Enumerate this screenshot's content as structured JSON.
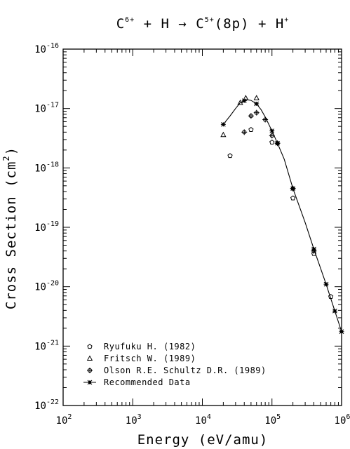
{
  "chart_data": {
    "type": "scatter",
    "title": {
      "parts": [
        {
          "text": "C",
          "sup": "6+"
        },
        {
          "text": " + H → C",
          "sup": "5+"
        },
        {
          "text": "(8p) + H",
          "sup": "+"
        }
      ]
    },
    "xlabel": "Energy (eV/amu)",
    "ylabel": {
      "text": "Cross Section (cm",
      "sup": "2",
      "tail": ")"
    },
    "x_scale": "log",
    "y_scale": "log",
    "xlim": [
      100,
      1000000
    ],
    "ylim": [
      1e-22,
      1e-16
    ],
    "x_ticks": [
      {
        "base": "10",
        "exp": "2",
        "value": 100
      },
      {
        "base": "10",
        "exp": "3",
        "value": 1000
      },
      {
        "base": "10",
        "exp": "4",
        "value": 10000
      },
      {
        "base": "10",
        "exp": "5",
        "value": 100000
      },
      {
        "base": "10",
        "exp": "6",
        "value": 1000000
      }
    ],
    "y_ticks": [
      {
        "base": "10",
        "exp": "-22",
        "value": 1e-22
      },
      {
        "base": "10",
        "exp": "-21",
        "value": 1e-21
      },
      {
        "base": "10",
        "exp": "-20",
        "value": 1e-20
      },
      {
        "base": "10",
        "exp": "-19",
        "value": 1e-19
      },
      {
        "base": "10",
        "exp": "-18",
        "value": 1e-18
      },
      {
        "base": "10",
        "exp": "-17",
        "value": 1e-17
      },
      {
        "base": "10",
        "exp": "-16",
        "value": 1e-16
      }
    ],
    "grid": false,
    "legend_position": "bottom-left",
    "series": [
      {
        "name": "Ryufuku H. (1982)",
        "marker": "pentagon",
        "x": [
          25000,
          50000,
          100000,
          200000,
          400000,
          700000
        ],
        "y": [
          1.6e-18,
          4.4e-18,
          2.7e-18,
          3.1e-19,
          3.6e-20,
          6.8e-21
        ]
      },
      {
        "name": "Fritsch W. (1989)",
        "marker": "triangle",
        "x": [
          20000,
          35000,
          42000,
          60000
        ],
        "y": [
          3.6e-18,
          1.25e-17,
          1.5e-17,
          1.5e-17
        ]
      },
      {
        "name": "Olson R.E. Schultz D.R. (1989)",
        "marker": "circle-plus",
        "x": [
          40000,
          50000,
          60000,
          80000,
          100000,
          120000,
          200000,
          400000
        ],
        "y": [
          4e-18,
          7.5e-18,
          8.5e-18,
          6.5e-18,
          3.5e-18,
          2.6e-18,
          4.5e-19,
          4e-20
        ]
      },
      {
        "name": "Recommended Data",
        "marker": "star-line",
        "x": [
          20000,
          40000,
          60000,
          100000,
          120000,
          200000,
          400000,
          600000,
          800000,
          1000000
        ],
        "y": [
          5.4e-18,
          1.35e-17,
          1.2e-17,
          4.2e-18,
          2.6e-18,
          4.5e-19,
          4.3e-20,
          1.1e-20,
          3.9e-21,
          1.75e-21
        ],
        "curve_x": [
          20000,
          25000,
          30000,
          35000,
          40000,
          45000,
          50000,
          60000,
          70000,
          80000,
          100000,
          120000,
          150000,
          200000,
          300000,
          400000,
          600000,
          800000,
          1000000
        ],
        "curve_y": [
          5.4e-18,
          7.5e-18,
          1e-17,
          1.25e-17,
          1.36e-17,
          1.4e-17,
          1.37e-17,
          1.2e-17,
          9.5e-18,
          7.2e-18,
          4.2e-18,
          2.6e-18,
          1.4e-18,
          4.5e-19,
          1.2e-19,
          4.3e-20,
          1.1e-20,
          3.9e-21,
          1.75e-21
        ]
      }
    ]
  }
}
